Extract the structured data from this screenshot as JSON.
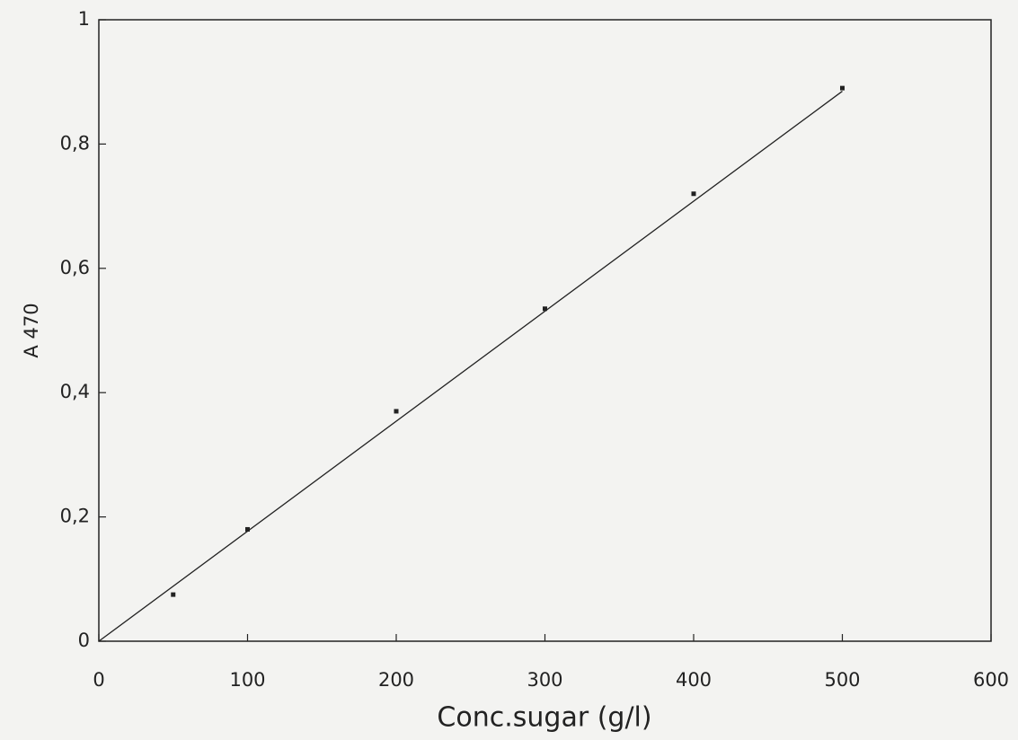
{
  "chart_data": {
    "type": "scatter",
    "xlabel": "Conc.sugar (g/l)",
    "ylabel": "A 470",
    "x": [
      50,
      100,
      200,
      300,
      400,
      500
    ],
    "values": [
      0.075,
      0.18,
      0.37,
      0.535,
      0.72,
      0.89
    ],
    "color": "#222222",
    "fit": {
      "x": [
        0,
        500
      ],
      "values": [
        0,
        0.885
      ]
    },
    "xlim": [
      0,
      600
    ],
    "xticks": [
      0,
      100,
      200,
      300,
      400,
      500,
      600
    ],
    "ylim": [
      0,
      1
    ],
    "yticks": [
      0,
      {
        "value": 0.2,
        "label": "0,2"
      },
      {
        "value": 0.4,
        "label": "0,4"
      },
      {
        "value": 0.6,
        "label": "0,6"
      },
      {
        "value": 0.8,
        "label": "0,8"
      },
      1
    ],
    "grid": false
  }
}
